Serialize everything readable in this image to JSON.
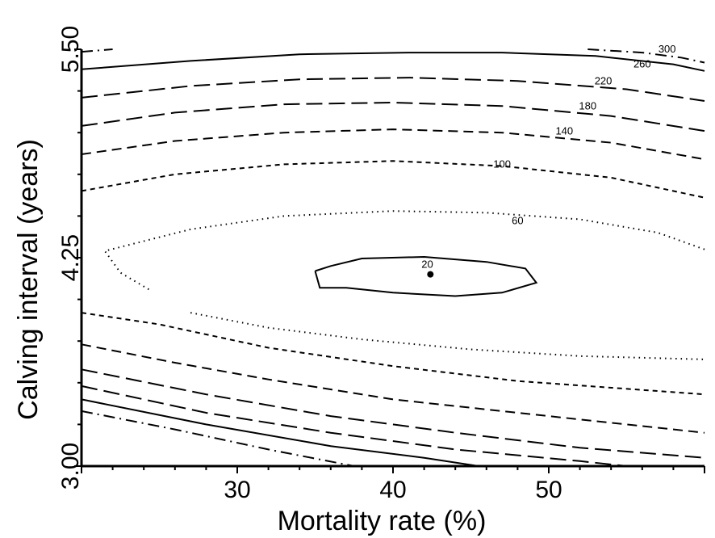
{
  "chart_data": {
    "type": "contour",
    "xlabel": "Mortality rate (%)",
    "ylabel": "Calving interval (years)",
    "xlim": [
      20,
      60
    ],
    "ylim": [
      3.0,
      5.5
    ],
    "x_ticks": [
      30,
      40,
      50
    ],
    "x_tick_labels": [
      "30",
      "40",
      "50"
    ],
    "y_ticks": [
      3.0,
      4.25,
      5.5
    ],
    "y_tick_labels": [
      "3.00",
      "4.25",
      "5.50"
    ],
    "grid": false,
    "minimum_point": {
      "x": 42.4,
      "y": 4.15
    },
    "contours": [
      {
        "label": "20",
        "label_at": [
          42.2,
          4.19
        ],
        "style": "solid",
        "segments": [
          [
            [
              35.0,
              4.17
            ],
            [
              36.0,
              4.2
            ],
            [
              38.0,
              4.245
            ],
            [
              42.0,
              4.255
            ],
            [
              46.0,
              4.225
            ],
            [
              48.5,
              4.185
            ],
            [
              49.2,
              4.1
            ],
            [
              47.0,
              4.04
            ],
            [
              44.0,
              4.02
            ],
            [
              40.0,
              4.04
            ],
            [
              37.0,
              4.07
            ],
            [
              35.3,
              4.07
            ],
            [
              35.0,
              4.17
            ]
          ]
        ]
      },
      {
        "label": "60",
        "label_at": [
          48.0,
          4.45
        ],
        "style": "dotted",
        "segments": [
          [
            [
              60.0,
              4.3
            ],
            [
              57.0,
              4.4
            ],
            [
              52.0,
              4.48
            ],
            [
              46.0,
              4.52
            ],
            [
              40.0,
              4.53
            ],
            [
              33.0,
              4.5
            ],
            [
              27.0,
              4.42
            ],
            [
              21.5,
              4.29
            ],
            [
              22.5,
              4.16
            ],
            [
              24.5,
              4.05
            ]
          ],
          [
            [
              27.0,
              3.92
            ],
            [
              32.0,
              3.83
            ],
            [
              38.0,
              3.76
            ],
            [
              45.0,
              3.7
            ],
            [
              52.0,
              3.66
            ],
            [
              60.0,
              3.64
            ]
          ]
        ]
      },
      {
        "label": "100",
        "label_at": [
          47.0,
          4.79
        ],
        "style": "short-dash",
        "segments": [
          [
            [
              20.0,
              4.65
            ],
            [
              26.0,
              4.75
            ],
            [
              33.0,
              4.81
            ],
            [
              40.0,
              4.83
            ],
            [
              47.0,
              4.8
            ],
            [
              54.0,
              4.73
            ],
            [
              60.0,
              4.61
            ]
          ],
          [
            [
              20.0,
              3.92
            ],
            [
              25.0,
              3.85
            ],
            [
              32.0,
              3.71
            ],
            [
              40.0,
              3.6
            ],
            [
              48.0,
              3.51
            ],
            [
              60.0,
              3.43
            ]
          ]
        ]
      },
      {
        "label": "140",
        "label_at": [
          51.0,
          4.99
        ],
        "style": "dash",
        "segments": [
          [
            [
              20.0,
              4.87
            ],
            [
              26.0,
              4.95
            ],
            [
              33.0,
              5.0
            ],
            [
              40.0,
              5.02
            ],
            [
              47.0,
              5.0
            ],
            [
              54.0,
              4.94
            ],
            [
              60.0,
              4.84
            ]
          ],
          [
            [
              20.0,
              3.73
            ],
            [
              26.0,
              3.62
            ],
            [
              32.0,
              3.52
            ],
            [
              40.0,
              3.4
            ],
            [
              48.0,
              3.32
            ],
            [
              60.0,
              3.2
            ]
          ]
        ]
      },
      {
        "label": "180",
        "label_at": [
          52.5,
          5.14
        ],
        "style": "long-dash",
        "segments": [
          [
            [
              20.0,
              5.04
            ],
            [
              26.0,
              5.12
            ],
            [
              33.0,
              5.17
            ],
            [
              40.0,
              5.18
            ],
            [
              47.0,
              5.16
            ],
            [
              54.0,
              5.1
            ],
            [
              60.0,
              5.01
            ]
          ],
          [
            [
              20.0,
              3.58
            ],
            [
              28.0,
              3.43
            ],
            [
              36.0,
              3.3
            ],
            [
              44.0,
              3.2
            ],
            [
              52.0,
              3.11
            ],
            [
              60.0,
              3.05
            ]
          ]
        ]
      },
      {
        "label": "220",
        "label_at": [
          53.5,
          5.29
        ],
        "style": "long-dash",
        "segments": [
          [
            [
              20.0,
              5.21
            ],
            [
              27.0,
              5.28
            ],
            [
              34.0,
              5.32
            ],
            [
              41.0,
              5.33
            ],
            [
              48.0,
              5.31
            ],
            [
              55.0,
              5.26
            ],
            [
              60.0,
              5.19
            ]
          ],
          [
            [
              20.0,
              3.48
            ],
            [
              28.0,
              3.32
            ],
            [
              36.0,
              3.2
            ],
            [
              44.0,
              3.1
            ],
            [
              52.0,
              3.03
            ],
            [
              55.0,
              3.0
            ]
          ]
        ]
      },
      {
        "label": "260",
        "label_at": [
          56.0,
          5.39
        ],
        "style": "solid",
        "segments": [
          [
            [
              20.0,
              5.38
            ],
            [
              27.0,
              5.43
            ],
            [
              34.0,
              5.47
            ],
            [
              41.0,
              5.48
            ],
            [
              47.0,
              5.48
            ],
            [
              53.0,
              5.46
            ],
            [
              58.0,
              5.41
            ],
            [
              60.0,
              5.37
            ]
          ],
          [
            [
              20.0,
              3.4
            ],
            [
              28.0,
              3.25
            ],
            [
              36.0,
              3.12
            ],
            [
              42.0,
              3.05
            ],
            [
              45.5,
              3.0
            ]
          ]
        ]
      },
      {
        "label": "300",
        "label_at": [
          57.6,
          5.48
        ],
        "style": "dash-dot",
        "segments": [
          [
            [
              20.0,
              5.485
            ],
            [
              22.0,
              5.5
            ]
          ],
          [
            [
              52.5,
              5.5
            ],
            [
              56.0,
              5.48
            ],
            [
              58.5,
              5.45
            ],
            [
              60.0,
              5.42
            ]
          ],
          [
            [
              20.0,
              3.33
            ],
            [
              26.0,
              3.22
            ],
            [
              32.0,
              3.1
            ],
            [
              37.5,
              3.0
            ]
          ]
        ]
      }
    ]
  }
}
